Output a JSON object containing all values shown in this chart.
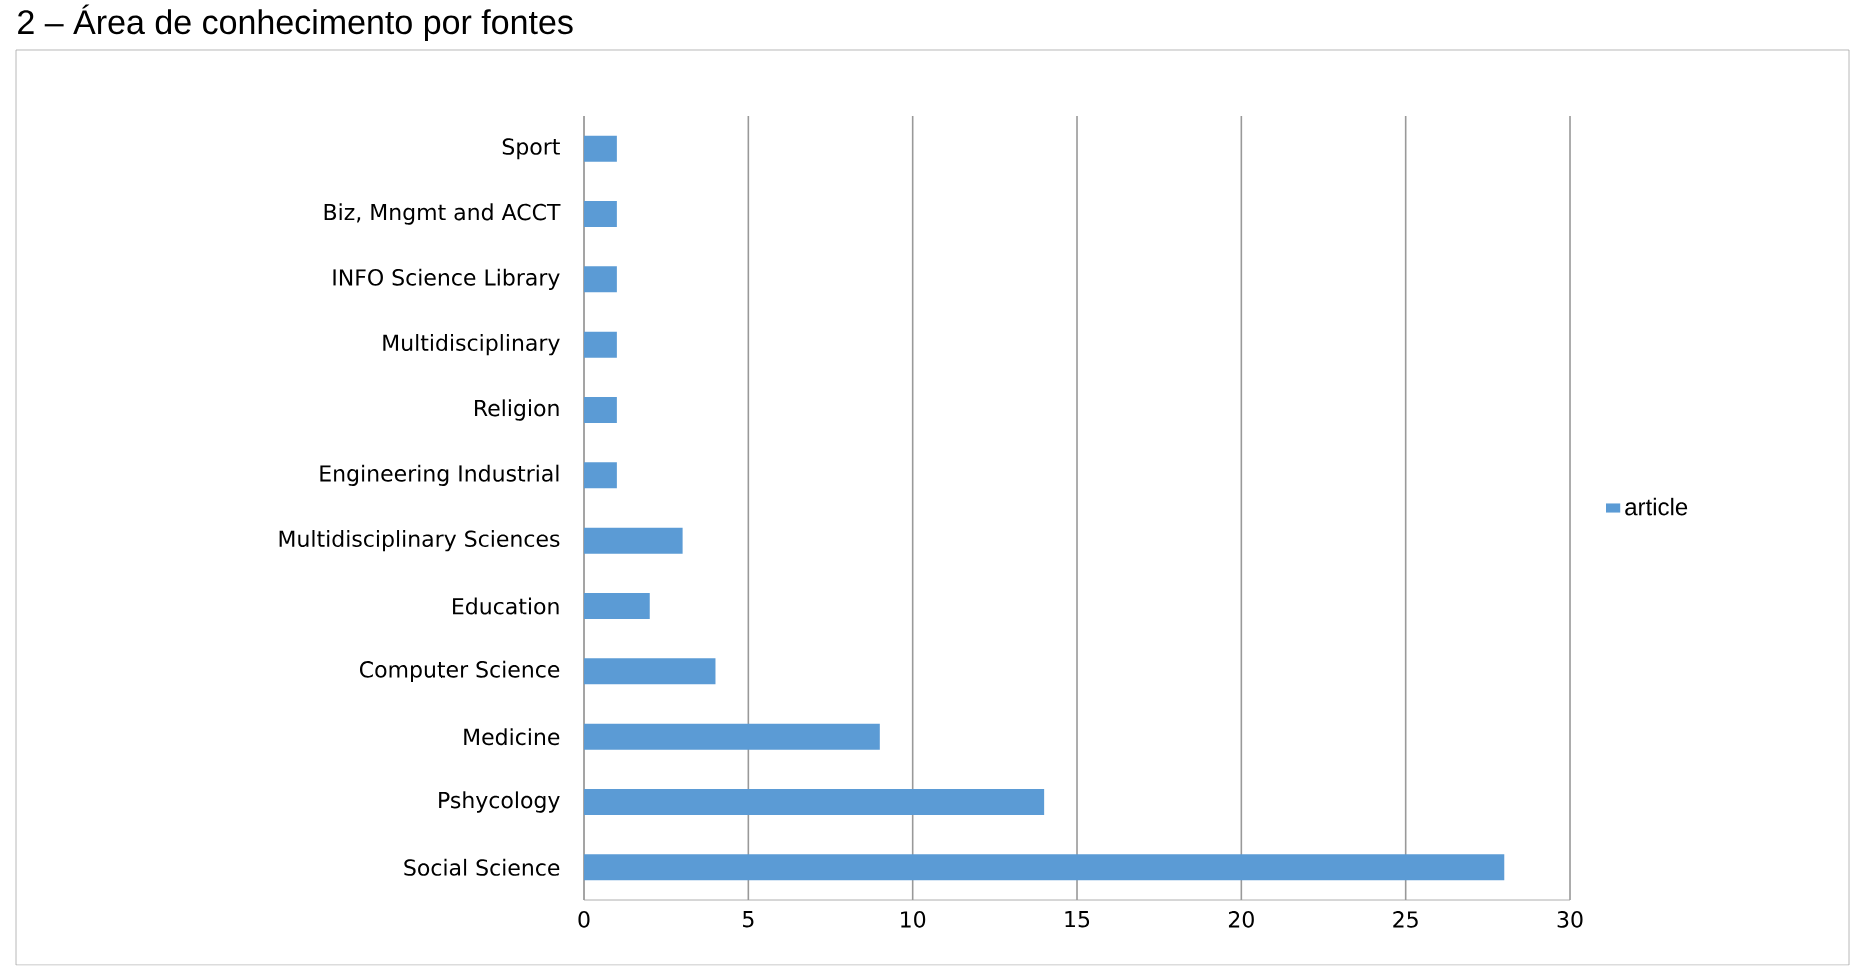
{
  "chart_data": {
    "type": "bar",
    "orientation": "horizontal",
    "title": "2 – Área de conhecimento por fontes",
    "categories": [
      "Sport",
      "Biz, Mngmt and ACCT",
      "INFO Science Library",
      "Multidisciplinary",
      "Religion",
      "Engineering Industrial",
      "Multidisciplinary Sciences",
      "Education",
      "Computer Science",
      "Medicine",
      "Pshycology",
      "Social Science"
    ],
    "series": [
      {
        "name": "article",
        "color": "#5b9bd5",
        "values": [
          1,
          1,
          1,
          1,
          1,
          1,
          3,
          2,
          4,
          9,
          14,
          28
        ]
      }
    ],
    "xlim": [
      0,
      30
    ],
    "xticks": [
      0,
      5,
      10,
      15,
      20,
      25,
      30
    ],
    "grid": "x",
    "legend": "right"
  }
}
